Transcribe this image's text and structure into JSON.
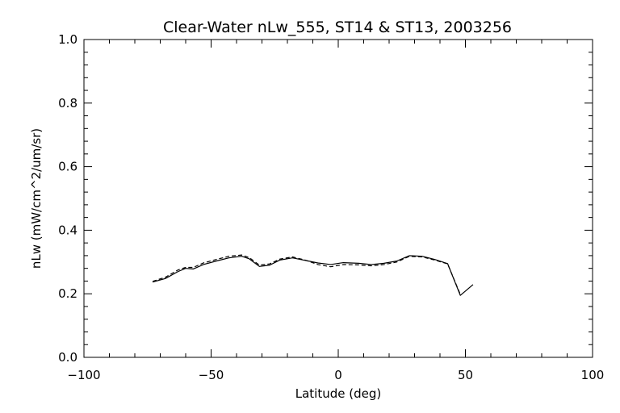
{
  "chart_data": {
    "type": "line",
    "title": "Clear-Water nLw_555, ST14 & ST13, 2003256",
    "xlabel": "Latitude (deg)",
    "ylabel": "nLw (mW/cm^2/um/sr)",
    "xlim": [
      -100,
      100
    ],
    "ylim": [
      0.0,
      1.0
    ],
    "xticks": [
      -100,
      -50,
      0,
      50,
      100
    ],
    "xtick_labels": [
      "−100",
      "−50",
      "0",
      "50",
      "100"
    ],
    "yticks": [
      0.0,
      0.2,
      0.4,
      0.6,
      0.8,
      1.0
    ],
    "ytick_labels": [
      "0.0",
      "0.2",
      "0.4",
      "0.6",
      "0.8",
      "1.0"
    ],
    "grid": false,
    "legend": false,
    "colors": {
      "axis": "#000000",
      "line": "#000000"
    },
    "series": [
      {
        "style": "solid",
        "x": [
          -73,
          -68,
          -63,
          -60,
          -57,
          -53,
          -48,
          -43,
          -38,
          -35,
          -31,
          -27,
          -23,
          -18,
          -13,
          -8,
          -3,
          2,
          8,
          13,
          18,
          23,
          28,
          33,
          38,
          43,
          48,
          53
        ],
        "y": [
          0.237,
          0.248,
          0.27,
          0.28,
          0.278,
          0.292,
          0.303,
          0.313,
          0.318,
          0.31,
          0.286,
          0.29,
          0.306,
          0.313,
          0.305,
          0.297,
          0.292,
          0.298,
          0.296,
          0.292,
          0.296,
          0.303,
          0.32,
          0.318,
          0.308,
          0.295,
          0.195,
          0.229
        ]
      },
      {
        "style": "dashed",
        "x": [
          -73,
          -68,
          -63,
          -60,
          -57,
          -53,
          -48,
          -43,
          -38,
          -35,
          -31,
          -27,
          -23,
          -18,
          -13,
          -8,
          -3,
          2,
          8,
          13,
          18,
          23,
          28,
          33,
          38,
          43,
          48
        ],
        "y": [
          0.239,
          0.252,
          0.275,
          0.283,
          0.283,
          0.297,
          0.308,
          0.318,
          0.322,
          0.314,
          0.29,
          0.294,
          0.309,
          0.316,
          0.306,
          0.292,
          0.285,
          0.292,
          0.291,
          0.288,
          0.292,
          0.3,
          0.318,
          0.316,
          0.306,
          0.294,
          0.198
        ]
      }
    ]
  }
}
